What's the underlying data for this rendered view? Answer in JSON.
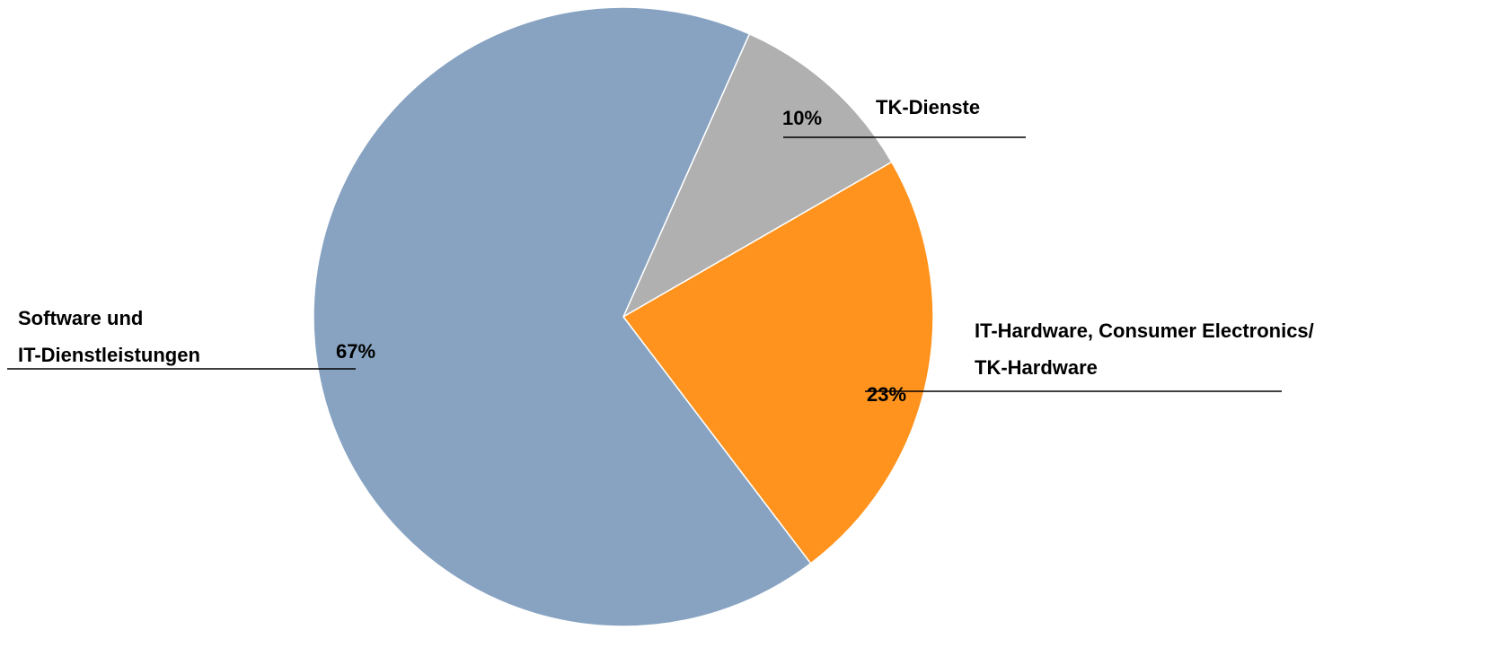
{
  "chart_data": {
    "type": "pie",
    "categories": [
      "TK-Dienste",
      "IT-Hardware, Consumer Electronics/\nTK-Hardware",
      "Software und\nIT-Dienstleistungen"
    ],
    "values": [
      10,
      23,
      67
    ],
    "value_labels": [
      "10%",
      "23%",
      "67%"
    ],
    "colors": [
      "#b0b0b0",
      "#ff931e",
      "#87a3c1"
    ]
  }
}
